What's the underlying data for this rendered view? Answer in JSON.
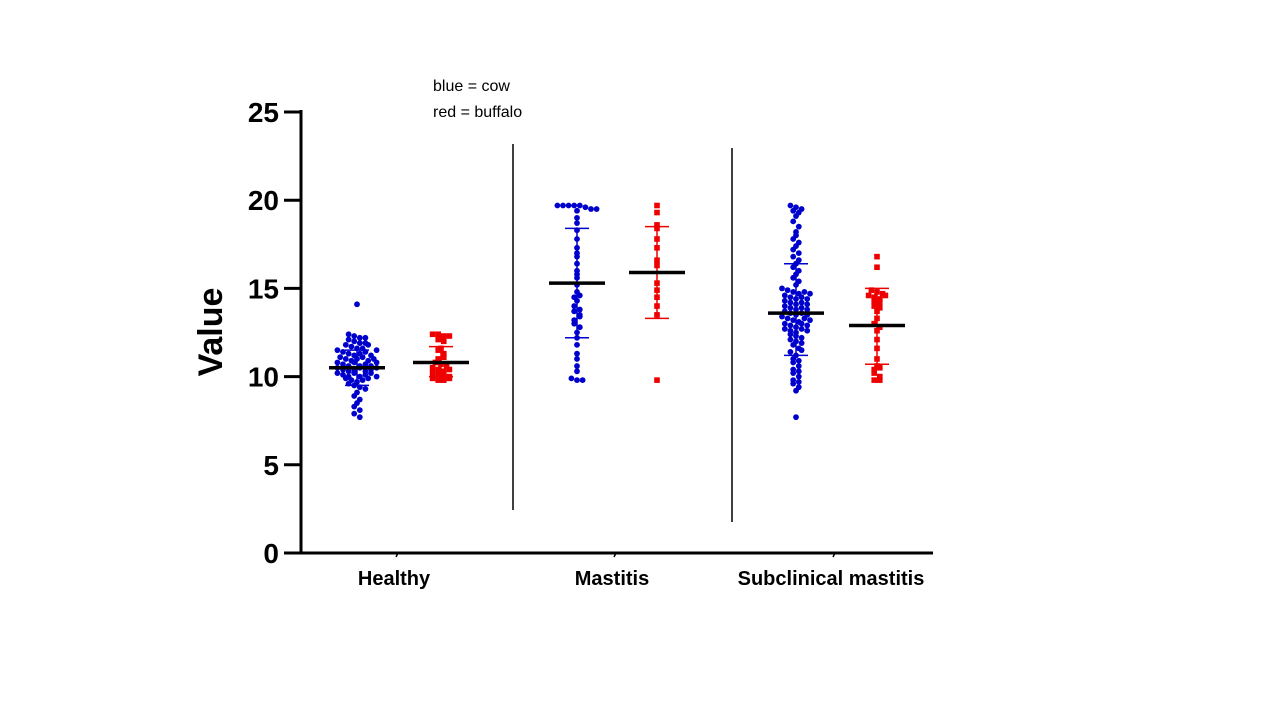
{
  "legend_notes": [
    "blue = cow",
    "red = buffalo"
  ],
  "chart_data": {
    "type": "scatter",
    "title": "",
    "xlabel": "",
    "ylabel": "Value",
    "ylim": [
      0,
      25
    ],
    "yticks": [
      0,
      5,
      10,
      15,
      20,
      25
    ],
    "categories": [
      "Healthy",
      "Mastitis",
      "Subclinical mastitis"
    ],
    "grid": false,
    "separators_between_groups": true,
    "series": [
      {
        "name": "cow",
        "color": "#0000cc",
        "groups": [
          {
            "category": "Healthy",
            "mean": 10.5,
            "sd_low": 9.5,
            "sd_high": 11.5,
            "values": [
              14.1,
              12.4,
              12.3,
              12.2,
              12.1,
              12.0,
              11.9,
              11.8,
              11.7,
              11.6,
              11.5,
              11.4,
              11.3,
              11.2,
              11.1,
              11.0,
              10.9,
              10.8,
              10.7,
              10.6,
              10.5,
              10.4,
              10.3,
              10.2,
              10.1,
              10.0,
              9.9,
              9.8,
              9.7,
              9.6,
              9.5,
              9.4,
              9.3,
              9.1,
              8.9,
              8.7,
              8.5,
              8.3,
              8.1,
              7.9,
              7.7,
              12.2,
              11.9,
              11.6,
              11.3,
              11.0,
              10.8,
              10.6,
              10.4,
              10.2,
              10.0,
              9.8,
              11.8,
              11.4,
              11.1,
              10.7,
              10.5,
              10.3,
              10.1,
              10.9,
              10.6,
              10.4,
              11.2,
              10.8,
              10.2,
              9.9,
              11.5,
              11.0,
              10.5,
              10.0
            ]
          },
          {
            "category": "Mastitis",
            "mean": 15.3,
            "sd_low": 12.2,
            "sd_high": 18.4,
            "values": [
              19.7,
              19.7,
              19.7,
              19.7,
              19.7,
              19.6,
              19.5,
              19.5,
              19.4,
              19.0,
              18.7,
              18.3,
              17.8,
              17.3,
              16.8,
              16.4,
              16.0,
              15.6,
              15.2,
              14.8,
              14.5,
              14.3,
              14.0,
              13.8,
              13.7,
              13.5,
              13.2,
              13.0,
              12.8,
              12.5,
              12.2,
              11.8,
              11.3,
              11.0,
              10.6,
              10.3,
              9.9,
              9.8,
              9.8,
              17.0,
              15.8,
              14.6,
              13.4
            ]
          },
          {
            "category": "Subclinical mastitis",
            "mean": 13.6,
            "sd_low": 11.2,
            "sd_high": 16.4,
            "values": [
              19.7,
              19.6,
              19.5,
              19.4,
              19.3,
              19.1,
              18.8,
              18.5,
              18.2,
              18.0,
              17.8,
              17.6,
              17.4,
              17.2,
              17.0,
              16.8,
              16.6,
              16.4,
              16.2,
              16.0,
              15.8,
              15.6,
              15.4,
              15.2,
              15.0,
              14.9,
              14.8,
              14.7,
              14.6,
              14.5,
              14.4,
              14.3,
              14.2,
              14.1,
              14.0,
              13.9,
              13.8,
              13.7,
              13.6,
              13.5,
              13.4,
              13.3,
              13.2,
              13.1,
              13.0,
              12.9,
              12.8,
              12.7,
              12.6,
              12.5,
              12.4,
              12.3,
              12.2,
              12.1,
              12.0,
              11.9,
              11.8,
              11.6,
              11.4,
              11.2,
              11.0,
              10.8,
              10.6,
              10.4,
              10.2,
              10.0,
              9.8,
              9.6,
              9.4,
              9.2,
              7.7,
              14.8,
              14.5,
              14.2,
              13.9,
              13.6,
              13.3,
              13.0,
              12.7,
              14.7,
              14.4,
              14.1,
              13.8,
              13.5,
              13.2,
              12.9,
              12.6,
              11.5,
              10.9,
              10.3,
              9.7
            ]
          }
        ]
      },
      {
        "name": "buffalo",
        "color": "#ee0000",
        "groups": [
          {
            "category": "Healthy",
            "mean": 10.8,
            "sd_low": 10.0,
            "sd_high": 11.7,
            "values": [
              12.4,
              12.4,
              12.3,
              12.3,
              12.1,
              11.6,
              11.5,
              11.3,
              11.0,
              10.8,
              10.7,
              10.6,
              10.5,
              10.4,
              10.3,
              10.2,
              10.1,
              10.0,
              9.9,
              9.8,
              9.8,
              12.0,
              11.1,
              10.4,
              10.0,
              9.9
            ]
          },
          {
            "category": "Mastitis",
            "mean": 15.9,
            "sd_low": 13.3,
            "sd_high": 18.5,
            "values": [
              19.7,
              19.3,
              18.6,
              18.4,
              17.8,
              17.3,
              16.6,
              16.3,
              15.3,
              14.9,
              14.5,
              14.0,
              13.5,
              9.8
            ]
          },
          {
            "category": "Subclinical mastitis",
            "mean": 12.9,
            "sd_low": 10.7,
            "sd_high": 15.0,
            "values": [
              16.8,
              16.2,
              14.9,
              14.8,
              14.7,
              14.6,
              14.5,
              14.4,
              14.3,
              14.2,
              14.0,
              13.7,
              13.3,
              13.0,
              12.6,
              12.1,
              11.6,
              11.0,
              10.6,
              10.4,
              10.2,
              10.0,
              9.8,
              9.8,
              14.6,
              13.9,
              12.8,
              10.5
            ]
          }
        ]
      }
    ]
  }
}
